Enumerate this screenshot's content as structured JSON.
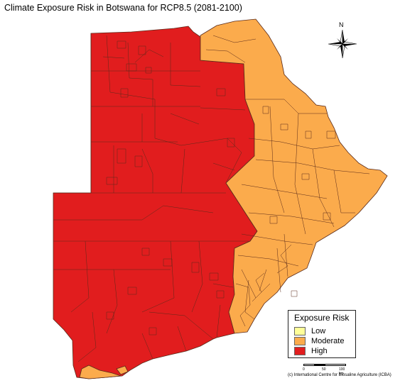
{
  "title": "Climate Exposure Risk in Botswana for RCP8.5 (2081-2100)",
  "compass": {
    "letter": "N",
    "icon": "north-arrow-compass-rose"
  },
  "legend": {
    "title": "Exposure Risk",
    "items": [
      {
        "label": "Low",
        "color": "#ffff99"
      },
      {
        "label": "Moderate",
        "color": "#fbab4c"
      },
      {
        "label": "High",
        "color": "#e11d1e"
      }
    ]
  },
  "scale_bar": {
    "ticks": [
      "0",
      "50",
      "100 km"
    ]
  },
  "credit": "(c) International Centre for Biosaline Agriculture (ICBA)",
  "colors": {
    "high": "#e11d1e",
    "moderate": "#fbab4c",
    "boundary": "#5a2a1a"
  }
}
